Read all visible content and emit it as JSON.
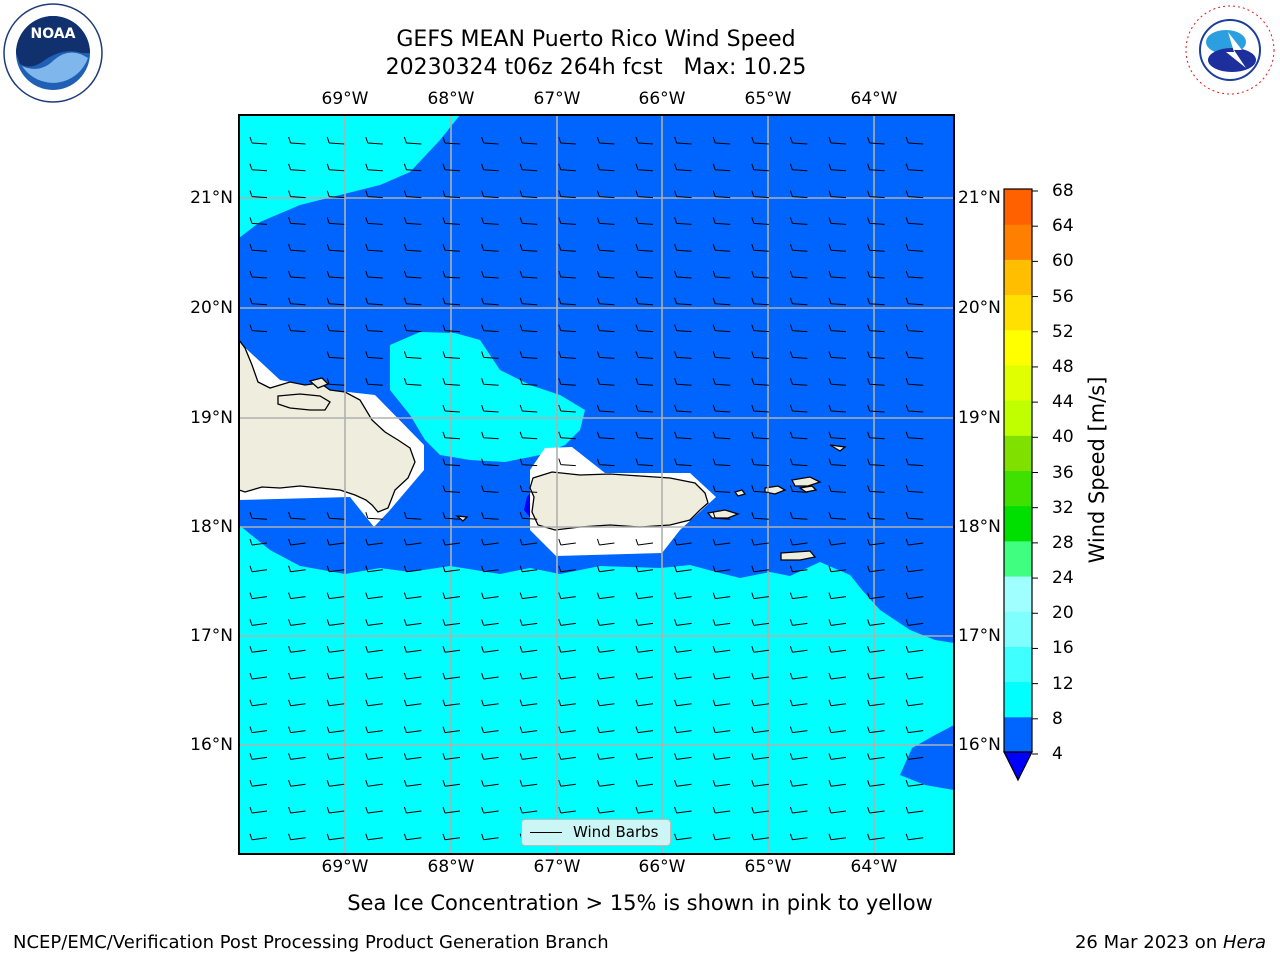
{
  "header": {
    "title_line1": "GEFS MEAN Puerto Rico Wind Speed",
    "title_line2": "20230324 t06z 264h fcst   Max: 10.25"
  },
  "logos": {
    "left": "noaa-logo",
    "right": "national-weather-service-logo"
  },
  "map": {
    "lon_labels": [
      "69°W",
      "68°W",
      "67°W",
      "66°W",
      "65°W",
      "64°W"
    ],
    "lat_labels": [
      "21°N",
      "20°N",
      "19°N",
      "18°N",
      "17°N",
      "16°N"
    ],
    "colors": {
      "fill_4_8": "#0064ff",
      "fill_8_12": "#00ffff",
      "land": "#efedde",
      "grid": "#b0b0b0",
      "barb": "#000000"
    },
    "legend_label": "Wind Barbs"
  },
  "colorbar": {
    "ticks": [
      "68",
      "64",
      "60",
      "56",
      "52",
      "48",
      "44",
      "40",
      "36",
      "32",
      "28",
      "24",
      "20",
      "16",
      "12",
      "8",
      "4"
    ],
    "colors_bottom_to_top": [
      "#0064ff",
      "#00ffff",
      "#40ffff",
      "#80ffff",
      "#a0ffff",
      "#40ff80",
      "#00e000",
      "#40e000",
      "#80e000",
      "#c0ff00",
      "#e0ff00",
      "#ffff00",
      "#ffe000",
      "#ffbf00",
      "#ff8000",
      "#ff6000",
      "#ff4000",
      "#ff0000"
    ],
    "extend_color": "#0000ff",
    "label": "Wind Speed [m/s]"
  },
  "note": "Sea Ice Concentration > 15% is shown in pink to yellow",
  "footer": {
    "left": "NCEP/EMC/Verification Post Processing Product Generation Branch",
    "right_date": "26 Mar 2023 on ",
    "right_machine": "Hera"
  }
}
